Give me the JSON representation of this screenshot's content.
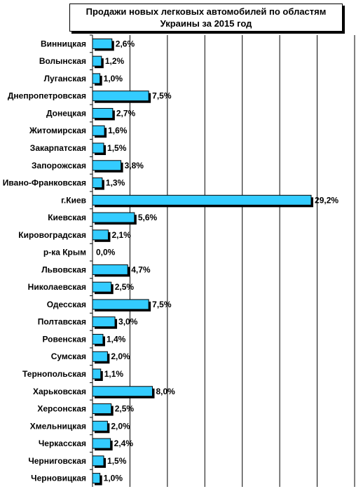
{
  "chart_data": {
    "type": "bar",
    "orientation": "horizontal",
    "title_line1": "Продажи новых легковых автомобилей по областям",
    "title_line2": "Украины за 2015 год",
    "categories": [
      "Винницкая",
      "Волынская",
      "Луганская",
      "Днепропетровская",
      "Донецкая",
      "Житомирская",
      "Закарпатская",
      "Запорожская",
      "Ивано-Франковская",
      "г.Киев",
      "Киевская",
      "Кировоградская",
      "р-ка Крым",
      "Львовская",
      "Николаевская",
      "Одесская",
      "Полтавская",
      "Ровенская",
      "Сумская",
      "Тернопольская",
      "Харьковская",
      "Херсонская",
      "Хмельницкая",
      "Черкасская",
      "Черниговская",
      "Черновицкая"
    ],
    "values": [
      2.6,
      1.2,
      1.0,
      7.5,
      2.7,
      1.6,
      1.5,
      3.8,
      1.3,
      29.2,
      5.6,
      2.1,
      0.0,
      4.7,
      2.5,
      7.5,
      3.0,
      1.4,
      2.0,
      1.1,
      8.0,
      2.5,
      2.0,
      2.4,
      1.5,
      1.0
    ],
    "value_labels": [
      "2,6%",
      "1,2%",
      "1,0%",
      "7,5%",
      "2,7%",
      "1,6%",
      "1,5%",
      "3,8%",
      "1,3%",
      "29,2%",
      "5,6%",
      "2,1%",
      "0,0%",
      "4,7%",
      "2,5%",
      "7,5%",
      "3,0%",
      "1,4%",
      "2,0%",
      "1,1%",
      "8,0%",
      "2,5%",
      "2,0%",
      "2,4%",
      "1,5%",
      "1,0%"
    ],
    "xlim": [
      0,
      35
    ],
    "grid": true,
    "legend": "none",
    "bar_color": "#33ccff"
  }
}
